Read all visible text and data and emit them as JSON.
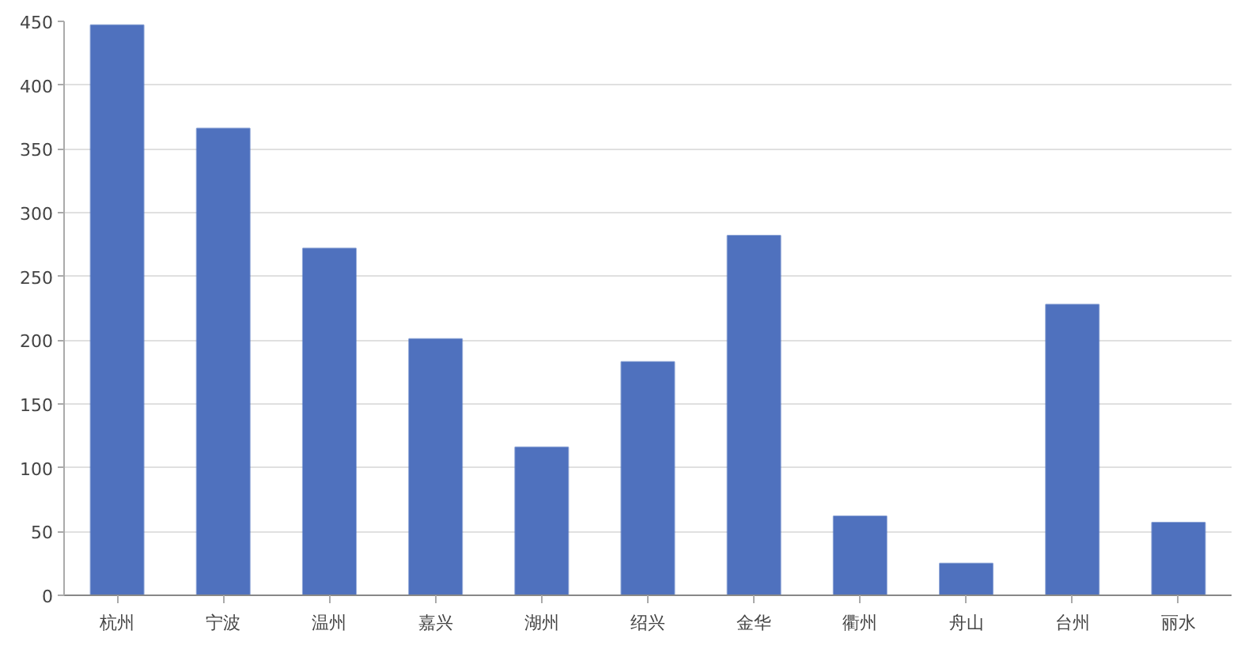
{
  "chart_data": {
    "type": "bar",
    "categories": [
      "杭州",
      "宁波",
      "温州",
      "嘉兴",
      "湖州",
      "绍兴",
      "金华",
      "衢州",
      "舟山",
      "台州",
      "丽水"
    ],
    "values": [
      447,
      366,
      272,
      201,
      116,
      183,
      282,
      62,
      25,
      228,
      57
    ],
    "color": "#4f71be",
    "ylim": [
      0,
      450
    ],
    "yticks": [
      0,
      50,
      100,
      150,
      200,
      250,
      300,
      350,
      400,
      450
    ],
    "grid": "y"
  }
}
